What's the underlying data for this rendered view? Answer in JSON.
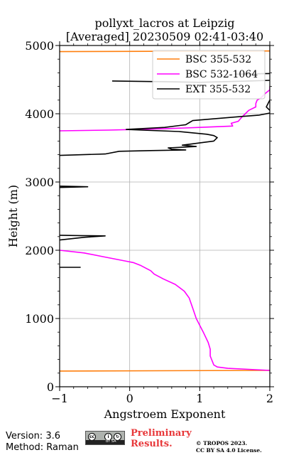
{
  "chart_data": {
    "type": "line",
    "title": "pollyxt_lacros at Leipzig",
    "subtitle": "[Averaged] 20230509 02:41-03:40",
    "xlabel": "Angstroem Exponent",
    "ylabel": "Height (m)",
    "xlim": [
      -1,
      2
    ],
    "ylim": [
      0,
      5000
    ],
    "xticks": [
      "-1",
      "0",
      "1",
      "2"
    ],
    "yticks": [
      "0",
      "1000",
      "2000",
      "3000",
      "4000",
      "5000"
    ],
    "grid": true,
    "legend_position": "top-right",
    "series": [
      {
        "name": "BSC 355-532",
        "color": "#ff7f0e",
        "segments": [
          [
            [
              -1.0,
              230
            ],
            [
              2.0,
              240
            ]
          ],
          [
            [
              -1.0,
              4910
            ],
            [
              2.0,
              4920
            ]
          ]
        ]
      },
      {
        "name": "BSC 532-1064",
        "color": "#ff00ff",
        "segments": [
          [
            [
              2.0,
              240
            ],
            [
              1.7,
              255
            ],
            [
              1.4,
              270
            ],
            [
              1.25,
              290
            ],
            [
              1.2,
              320
            ],
            [
              1.15,
              450
            ],
            [
              1.15,
              550
            ],
            [
              1.12,
              650
            ],
            [
              1.05,
              800
            ],
            [
              0.95,
              1000
            ],
            [
              0.9,
              1150
            ],
            [
              0.85,
              1300
            ],
            [
              0.78,
              1400
            ],
            [
              0.65,
              1500
            ],
            [
              0.48,
              1580
            ],
            [
              0.35,
              1650
            ],
            [
              0.3,
              1700
            ],
            [
              0.15,
              1780
            ],
            [
              0.05,
              1820
            ],
            [
              -0.05,
              1840
            ],
            [
              -0.35,
              1900
            ],
            [
              -0.65,
              1960
            ],
            [
              -1.0,
              2000
            ]
          ],
          [
            [
              -1.0,
              3750
            ],
            [
              -0.3,
              3760
            ],
            [
              0.5,
              3780
            ],
            [
              1.0,
              3800
            ],
            [
              1.47,
              3820
            ],
            [
              1.45,
              3860
            ],
            [
              1.55,
              3890
            ],
            [
              1.6,
              3950
            ],
            [
              1.65,
              4000
            ],
            [
              1.7,
              4050
            ],
            [
              1.8,
              4100
            ],
            [
              1.8,
              4150
            ],
            [
              1.82,
              4200
            ],
            [
              1.87,
              4230
            ],
            [
              1.9,
              4260
            ],
            [
              1.95,
              4310
            ],
            [
              2.0,
              4350
            ],
            [
              2.0,
              4400
            ]
          ]
        ]
      },
      {
        "name": "EXT 355-532",
        "color": "#000000",
        "segments": [
          [
            [
              -1.0,
              1750
            ],
            [
              -0.7,
              1750
            ]
          ],
          [
            [
              -1.0,
              2150
            ],
            [
              -0.65,
              2190
            ],
            [
              -0.35,
              2210
            ],
            [
              -0.7,
              2215
            ],
            [
              -1.0,
              2220
            ]
          ],
          [
            [
              -1.0,
              2920
            ],
            [
              -0.6,
              2930
            ],
            [
              -1.0,
              2940
            ]
          ],
          [
            [
              -1.0,
              3390
            ],
            [
              -0.35,
              3410
            ],
            [
              -0.15,
              3450
            ],
            [
              0.3,
              3460
            ],
            [
              0.8,
              3470
            ],
            [
              0.6,
              3480
            ],
            [
              0.55,
              3500
            ],
            [
              0.95,
              3520
            ],
            [
              0.75,
              3540
            ],
            [
              1.2,
              3600
            ],
            [
              1.25,
              3650
            ],
            [
              1.2,
              3680
            ],
            [
              1.1,
              3700
            ],
            [
              0.7,
              3740
            ],
            [
              -0.05,
              3770
            ],
            [
              0.5,
              3800
            ],
            [
              0.8,
              3840
            ],
            [
              0.85,
              3870
            ],
            [
              0.9,
              3900
            ],
            [
              1.6,
              3960
            ],
            [
              1.85,
              3980
            ],
            [
              2.0,
              4010
            ]
          ],
          [
            [
              2.0,
              4050
            ],
            [
              1.95,
              4100
            ],
            [
              2.0,
              4200
            ]
          ],
          [
            [
              -0.25,
              4480
            ],
            [
              0.5,
              4470
            ],
            [
              1.0,
              4460
            ],
            [
              1.7,
              4480
            ],
            [
              2.0,
              4490
            ]
          ],
          [
            [
              1.5,
              4580
            ],
            [
              2.0,
              4590
            ]
          ]
        ]
      }
    ]
  },
  "footer": {
    "version": "Version: 3.6",
    "method": "Method: Raman",
    "preliminary": "Preliminary Results.",
    "copyright_line1": "© TROPOS 2023.",
    "copyright_line2": "CC BY SA 4.0 License.",
    "badge_text": "BY SA"
  }
}
